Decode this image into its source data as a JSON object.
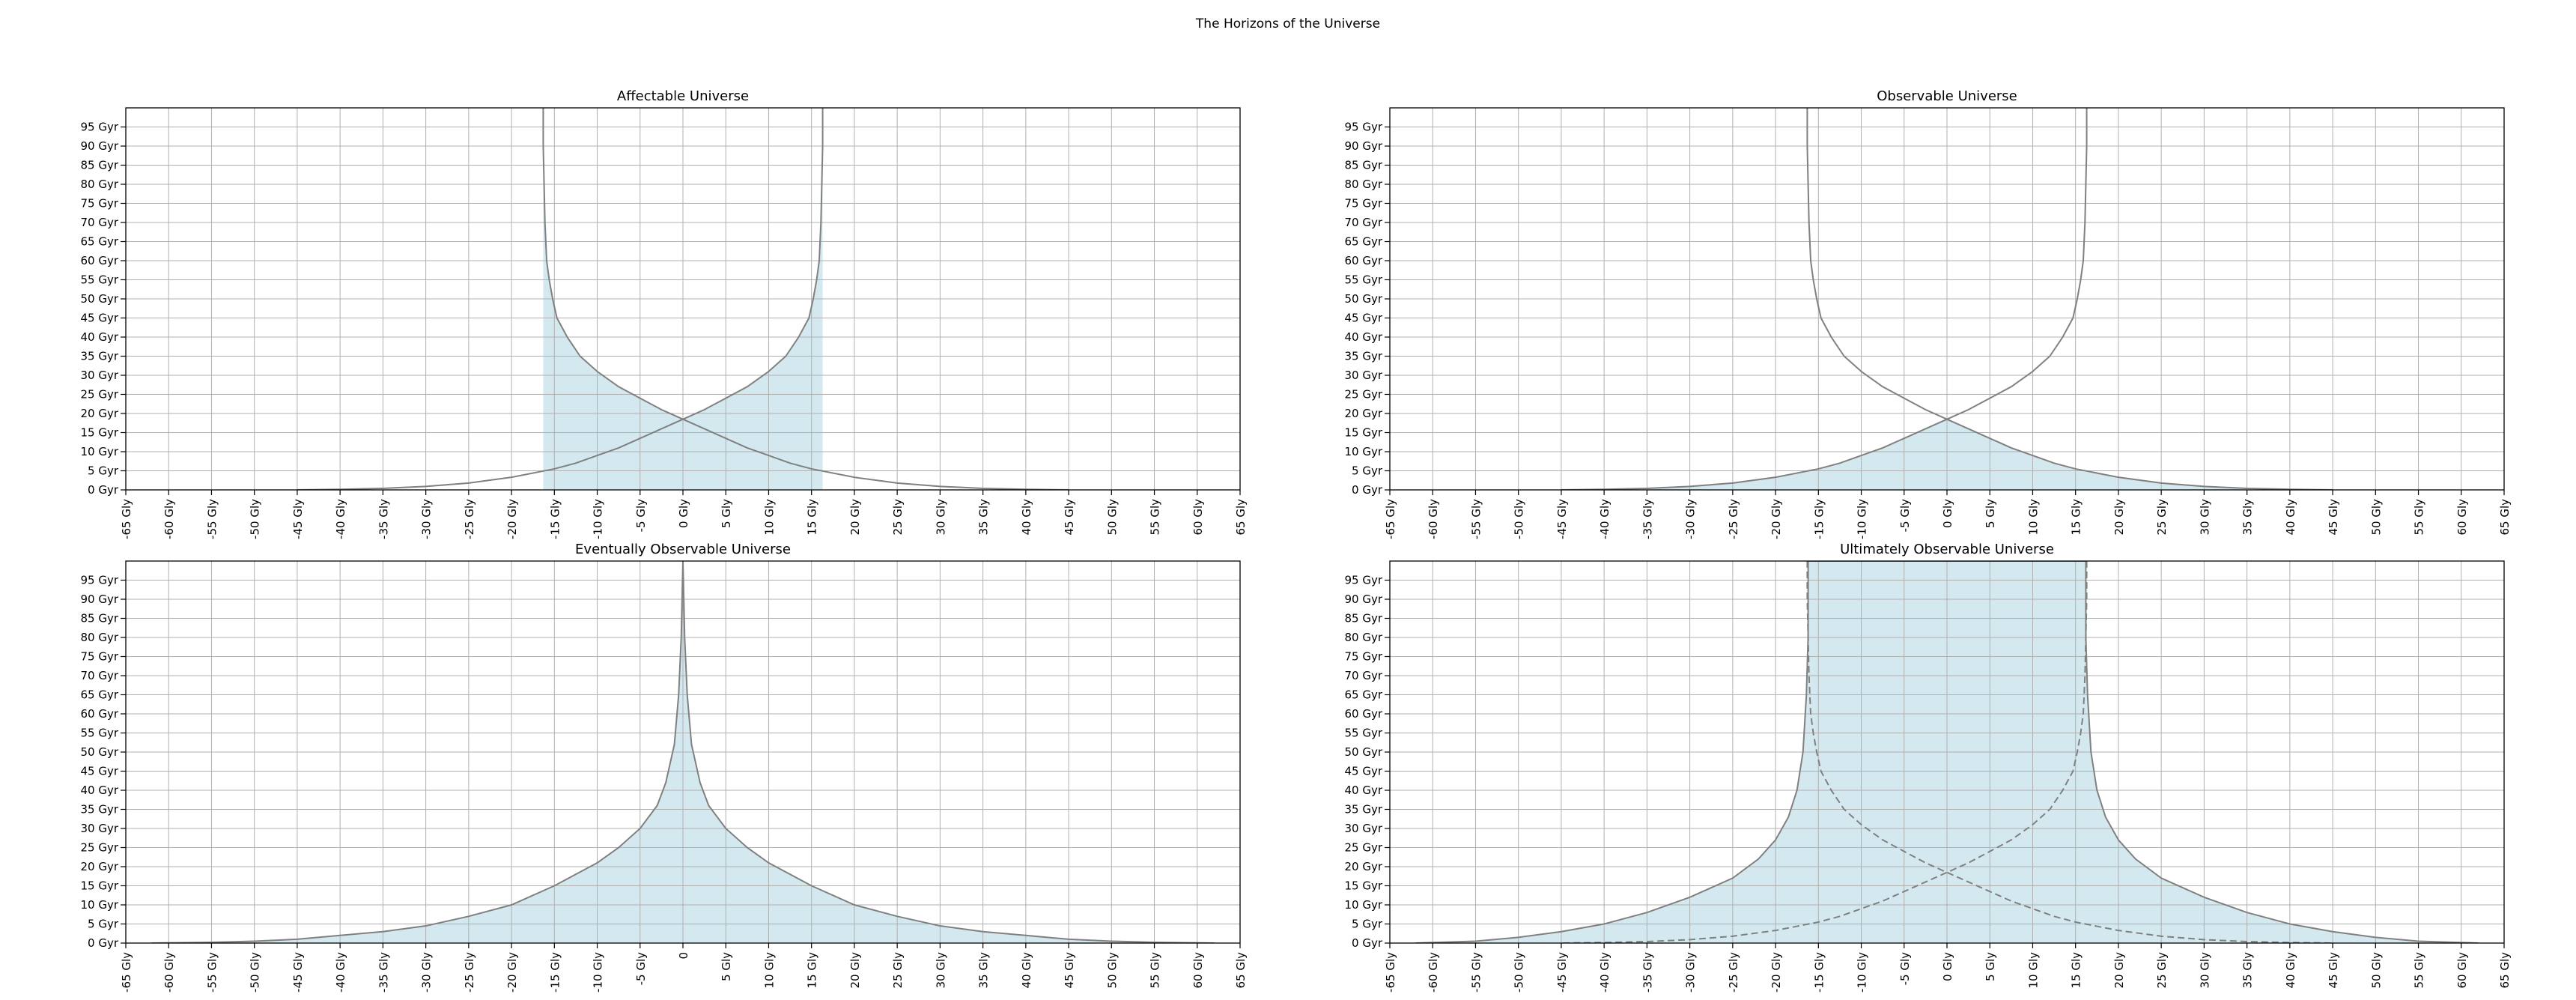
{
  "figure": {
    "title": "The Horizons of the Universe"
  },
  "style": {
    "fill_color": "#d4e9ef",
    "line_color": "#808080",
    "grid_color": "#b0b0b0"
  },
  "chart_data": [
    {
      "type": "area",
      "title": "Affectable Universe",
      "xlabel": "",
      "ylabel": "",
      "xlim": [
        -65,
        65
      ],
      "ylim": [
        0,
        100
      ],
      "x_ticks": [
        "-65 Gly",
        "-60 Gly",
        "-55 Gly",
        "-50 Gly",
        "-45 Gly",
        "-40 Gly",
        "-35 Gly",
        "-30 Gly",
        "-25 Gly",
        "-20 Gly",
        "-15 Gly",
        "-10 Gly",
        "-5 Gly",
        "0 Gly",
        "5 Gly",
        "10 Gly",
        "15 Gly",
        "20 Gly",
        "25 Gly",
        "30 Gly",
        "35 Gly",
        "40 Gly",
        "45 Gly",
        "50 Gly",
        "55 Gly",
        "60 Gly",
        "65 Gly"
      ],
      "y_ticks": [
        "0 Gyr",
        "5 Gyr",
        "10 Gyr",
        "15 Gyr",
        "20 Gyr",
        "25 Gyr",
        "30 Gyr",
        "35 Gyr",
        "40 Gyr",
        "45 Gyr",
        "50 Gyr",
        "55 Gyr",
        "60 Gyr",
        "65 Gyr",
        "70 Gyr",
        "75 Gyr",
        "80 Gyr",
        "85 Gyr",
        "90 Gyr",
        "95 Gyr"
      ],
      "grid": true,
      "series": [
        {
          "style": "solid",
          "x": [
            -16.3,
            -16.3,
            -16.2,
            -16.1,
            -15.9,
            -15.6,
            -15.2,
            -14.7,
            -13.5,
            -12.0,
            -10.0,
            -7.5,
            -5.0,
            -2.5,
            0.0,
            2.5,
            5.0,
            7.5,
            10.0,
            12.5,
            15.0,
            20.0,
            25.0,
            30.0,
            35.0,
            40.0,
            45.0
          ],
          "y": [
            100,
            90,
            80,
            70,
            60,
            55,
            50,
            45,
            40,
            35,
            31,
            27,
            24,
            21,
            18.5,
            16,
            13.5,
            11,
            9,
            7,
            5.5,
            3.3,
            1.8,
            0.9,
            0.4,
            0.15,
            0
          ]
        },
        {
          "style": "solid",
          "x": [
            16.3,
            16.3,
            16.2,
            16.1,
            15.9,
            15.6,
            15.2,
            14.7,
            13.5,
            12.0,
            10.0,
            7.5,
            5.0,
            2.5,
            0.0,
            -2.5,
            -5.0,
            -7.5,
            -10.0,
            -12.5,
            -15.0,
            -20.0,
            -25.0,
            -30.0,
            -35.0,
            -40.0,
            -45.0
          ],
          "y": [
            100,
            90,
            80,
            70,
            60,
            55,
            50,
            45,
            40,
            35,
            31,
            27,
            24,
            21,
            18.5,
            16,
            13.5,
            11,
            9,
            7,
            5.5,
            3.3,
            1.8,
            0.9,
            0.4,
            0.15,
            0
          ]
        }
      ],
      "filled_region": {
        "x": [
          -16.3,
          -16.3,
          -16.2,
          -16.1,
          -15.9,
          -15.6,
          -15.2,
          -14.7,
          -13.5,
          -12.0,
          -10.0,
          -7.5,
          -5.0,
          -2.5,
          0.0,
          2.5,
          5.0,
          7.5,
          10.0,
          12.0,
          13.5,
          14.7,
          15.2,
          15.6,
          15.9,
          16.1,
          16.2,
          16.3,
          16.3
        ],
        "y": [
          100,
          90,
          80,
          70,
          60,
          55,
          50,
          45,
          40,
          35,
          31,
          27,
          24,
          21,
          18.5,
          21,
          24,
          27,
          31,
          35,
          40,
          45,
          50,
          55,
          60,
          70,
          80,
          90,
          100
        ]
      }
    },
    {
      "type": "area",
      "title": "Observable Universe",
      "xlabel": "",
      "ylabel": "",
      "xlim": [
        -65,
        65
      ],
      "ylim": [
        0,
        100
      ],
      "x_ticks": [
        "-65 Gly",
        "-60 Gly",
        "-55 Gly",
        "-50 Gly",
        "-45 Gly",
        "-40 Gly",
        "-35 Gly",
        "-30 Gly",
        "-25 Gly",
        "-20 Gly",
        "-15 Gly",
        "-10 Gly",
        "-5 Gly",
        "0 Gly",
        "5 Gly",
        "10 Gly",
        "15 Gly",
        "20 Gly",
        "25 Gly",
        "30 Gly",
        "35 Gly",
        "40 Gly",
        "45 Gly",
        "50 Gly",
        "55 Gly",
        "60 Gly",
        "65 Gly"
      ],
      "y_ticks": [
        "0 Gyr",
        "5 Gyr",
        "10 Gyr",
        "15 Gyr",
        "20 Gyr",
        "25 Gyr",
        "30 Gyr",
        "35 Gyr",
        "40 Gyr",
        "45 Gyr",
        "50 Gyr",
        "55 Gyr",
        "60 Gyr",
        "65 Gyr",
        "70 Gyr",
        "75 Gyr",
        "80 Gyr",
        "85 Gyr",
        "90 Gyr",
        "95 Gyr"
      ],
      "grid": true,
      "series": [
        {
          "style": "solid",
          "x": [
            -16.3,
            -16.3,
            -16.2,
            -16.1,
            -15.9,
            -15.6,
            -15.2,
            -14.7,
            -13.5,
            -12.0,
            -10.0,
            -7.5,
            -5.0,
            -2.5,
            0.0,
            2.5,
            5.0,
            7.5,
            10.0,
            12.5,
            15.0,
            20.0,
            25.0,
            30.0,
            35.0,
            40.0,
            45.0
          ],
          "y": [
            100,
            90,
            80,
            70,
            60,
            55,
            50,
            45,
            40,
            35,
            31,
            27,
            24,
            21,
            18.5,
            16,
            13.5,
            11,
            9,
            7,
            5.5,
            3.3,
            1.8,
            0.9,
            0.4,
            0.15,
            0
          ]
        },
        {
          "style": "solid",
          "x": [
            16.3,
            16.3,
            16.2,
            16.1,
            15.9,
            15.6,
            15.2,
            14.7,
            13.5,
            12.0,
            10.0,
            7.5,
            5.0,
            2.5,
            0.0,
            -2.5,
            -5.0,
            -7.5,
            -10.0,
            -12.5,
            -15.0,
            -20.0,
            -25.0,
            -30.0,
            -35.0,
            -40.0,
            -45.0
          ],
          "y": [
            100,
            90,
            80,
            70,
            60,
            55,
            50,
            45,
            40,
            35,
            31,
            27,
            24,
            21,
            18.5,
            16,
            13.5,
            11,
            9,
            7,
            5.5,
            3.3,
            1.8,
            0.9,
            0.4,
            0.15,
            0
          ]
        }
      ],
      "filled_region": {
        "x": [
          -45.0,
          -40.0,
          -35.0,
          -30.0,
          -25.0,
          -20.0,
          -15.0,
          -12.5,
          -10.0,
          -7.5,
          -5.0,
          -2.5,
          0.0,
          2.5,
          5.0,
          7.5,
          10.0,
          12.5,
          15.0,
          20.0,
          25.0,
          30.0,
          35.0,
          40.0,
          45.0
        ],
        "y": [
          0,
          0.15,
          0.4,
          0.9,
          1.8,
          3.3,
          5.5,
          7,
          9,
          11,
          13.5,
          16,
          18.5,
          16,
          13.5,
          11,
          9,
          7,
          5.5,
          3.3,
          1.8,
          0.9,
          0.4,
          0.15,
          0
        ]
      }
    },
    {
      "type": "area",
      "title": "Eventually Observable Universe",
      "xlabel": "",
      "ylabel": "",
      "xlim": [
        -65,
        65
      ],
      "ylim": [
        0,
        100
      ],
      "x_ticks": [
        "-65 Gly",
        "-60 Gly",
        "-55 Gly",
        "-50 Gly",
        "-45 Gly",
        "-40 Gly",
        "-35 Gly",
        "-30 Gly",
        "-25 Gly",
        "-20 Gly",
        "-15 Gly",
        "-10 Gly",
        "-5 Gly",
        "0",
        "5 Gly",
        "10 Gly",
        "15 Gly",
        "20 Gly",
        "25 Gly",
        "30 Gly",
        "35 Gly",
        "40 Gly",
        "45 Gly",
        "50 Gly",
        "55 Gly",
        "60 Gly",
        "65 Gly"
      ],
      "y_ticks": [
        "0 Gyr",
        "5 Gyr",
        "10 Gyr",
        "15 Gyr",
        "20 Gyr",
        "25 Gyr",
        "30 Gyr",
        "35 Gyr",
        "40 Gyr",
        "45 Gyr",
        "50 Gyr",
        "55 Gyr",
        "60 Gyr",
        "65 Gyr",
        "70 Gyr",
        "75 Gyr",
        "80 Gyr",
        "85 Gyr",
        "90 Gyr",
        "95 Gyr"
      ],
      "grid": true,
      "series": [
        {
          "style": "solid",
          "x": [
            -62,
            -55,
            -50,
            -45,
            -40,
            -35,
            -30,
            -25,
            -20,
            -15,
            -10,
            -7.5,
            -5,
            -3,
            -2,
            -1,
            -0.5,
            -0.2,
            0,
            0.2,
            0.5,
            1,
            2,
            3,
            5,
            7.5,
            10,
            15,
            20,
            25,
            30,
            35,
            40,
            45,
            50,
            55,
            62
          ],
          "y": [
            0,
            0.2,
            0.5,
            1,
            2,
            3,
            4.5,
            7,
            10,
            15,
            21,
            25,
            30,
            36,
            42,
            52,
            65,
            80,
            100,
            80,
            65,
            52,
            42,
            36,
            30,
            25,
            21,
            15,
            10,
            7,
            4.5,
            3,
            2,
            1,
            0.5,
            0.2,
            0
          ]
        }
      ],
      "filled_region": {
        "x": [
          -62,
          -55,
          -50,
          -45,
          -40,
          -35,
          -30,
          -25,
          -20,
          -15,
          -10,
          -7.5,
          -5,
          -3,
          -2,
          -1,
          -0.5,
          -0.2,
          0,
          0.2,
          0.5,
          1,
          2,
          3,
          5,
          7.5,
          10,
          15,
          20,
          25,
          30,
          35,
          40,
          45,
          50,
          55,
          62
        ],
        "y": [
          0,
          0.2,
          0.5,
          1,
          2,
          3,
          4.5,
          7,
          10,
          15,
          21,
          25,
          30,
          36,
          42,
          52,
          65,
          80,
          100,
          80,
          65,
          52,
          42,
          36,
          30,
          25,
          21,
          15,
          10,
          7,
          4.5,
          3,
          2,
          1,
          0.5,
          0.2,
          0
        ]
      }
    },
    {
      "type": "area",
      "title": "Ultimately Observable Universe",
      "xlabel": "",
      "ylabel": "",
      "xlim": [
        -65,
        65
      ],
      "ylim": [
        0,
        100
      ],
      "x_ticks": [
        "-65 Gly",
        "-60 Gly",
        "-55 Gly",
        "-50 Gly",
        "-45 Gly",
        "-40 Gly",
        "-35 Gly",
        "-30 Gly",
        "-25 Gly",
        "-20 Gly",
        "-15 Gly",
        "-10 Gly",
        "-5 Gly",
        "0 Gly",
        "5 Gly",
        "10 Gly",
        "15 Gly",
        "20 Gly",
        "25 Gly",
        "30 Gly",
        "35 Gly",
        "40 Gly",
        "45 Gly",
        "50 Gly",
        "55 Gly",
        "60 Gly",
        "65 Gly"
      ],
      "y_ticks": [
        "0 Gyr",
        "5 Gyr",
        "10 Gyr",
        "15 Gyr",
        "20 Gyr",
        "25 Gyr",
        "30 Gyr",
        "35 Gyr",
        "40 Gyr",
        "45 Gyr",
        "50 Gyr",
        "55 Gyr",
        "60 Gyr",
        "65 Gyr",
        "70 Gyr",
        "75 Gyr",
        "80 Gyr",
        "85 Gyr",
        "90 Gyr",
        "95 Gyr"
      ],
      "grid": true,
      "series": [
        {
          "style": "solid",
          "x": [
            -62,
            -55,
            -50,
            -45,
            -40,
            -35,
            -30,
            -25,
            -22,
            -20,
            -18.5,
            -17.5,
            -16.8,
            -16.4,
            -16.2,
            -16.2,
            16.2,
            16.2,
            16.4,
            16.8,
            17.5,
            18.5,
            20,
            22,
            25,
            30,
            35,
            40,
            45,
            50,
            55,
            62
          ],
          "y": [
            0,
            0.5,
            1.5,
            3,
            5,
            8,
            12,
            17,
            22,
            27,
            33,
            40,
            50,
            65,
            80,
            100,
            100,
            80,
            65,
            50,
            40,
            33,
            27,
            22,
            17,
            12,
            8,
            5,
            3,
            1.5,
            0.5,
            0
          ]
        },
        {
          "style": "dashed",
          "x": [
            -16.3,
            -16.3,
            -16.2,
            -16.1,
            -15.9,
            -15.6,
            -15.2,
            -14.7,
            -13.5,
            -12.0,
            -10.0,
            -7.5,
            -5.0,
            -2.5,
            0.0,
            2.5,
            5.0,
            7.5,
            10.0,
            12.5,
            15.0,
            20.0,
            25.0,
            30.0,
            35.0,
            40.0,
            45.0
          ],
          "y": [
            100,
            90,
            80,
            70,
            60,
            55,
            50,
            45,
            40,
            35,
            31,
            27,
            24,
            21,
            18.5,
            16,
            13.5,
            11,
            9,
            7,
            5.5,
            3.3,
            1.8,
            0.9,
            0.4,
            0.15,
            0
          ]
        },
        {
          "style": "dashed",
          "x": [
            16.3,
            16.3,
            16.2,
            16.1,
            15.9,
            15.6,
            15.2,
            14.7,
            13.5,
            12.0,
            10.0,
            7.5,
            5.0,
            2.5,
            0.0,
            -2.5,
            -5.0,
            -7.5,
            -10.0,
            -12.5,
            -15.0,
            -20.0,
            -25.0,
            -30.0,
            -35.0,
            -40.0,
            -45.0
          ],
          "y": [
            100,
            90,
            80,
            70,
            60,
            55,
            50,
            45,
            40,
            35,
            31,
            27,
            24,
            21,
            18.5,
            16,
            13.5,
            11,
            9,
            7,
            5.5,
            3.3,
            1.8,
            0.9,
            0.4,
            0.15,
            0
          ]
        }
      ],
      "filled_region": {
        "x": [
          -62,
          -55,
          -50,
          -45,
          -40,
          -35,
          -30,
          -25,
          -22,
          -20,
          -18.5,
          -17.5,
          -16.8,
          -16.4,
          -16.2,
          -16.2,
          16.2,
          16.2,
          16.4,
          16.8,
          17.5,
          18.5,
          20,
          22,
          25,
          30,
          35,
          40,
          45,
          50,
          55,
          62
        ],
        "y": [
          0,
          0.5,
          1.5,
          3,
          5,
          8,
          12,
          17,
          22,
          27,
          33,
          40,
          50,
          65,
          80,
          100,
          100,
          80,
          65,
          50,
          40,
          33,
          27,
          22,
          17,
          12,
          8,
          5,
          3,
          1.5,
          0.5,
          0
        ]
      }
    }
  ]
}
